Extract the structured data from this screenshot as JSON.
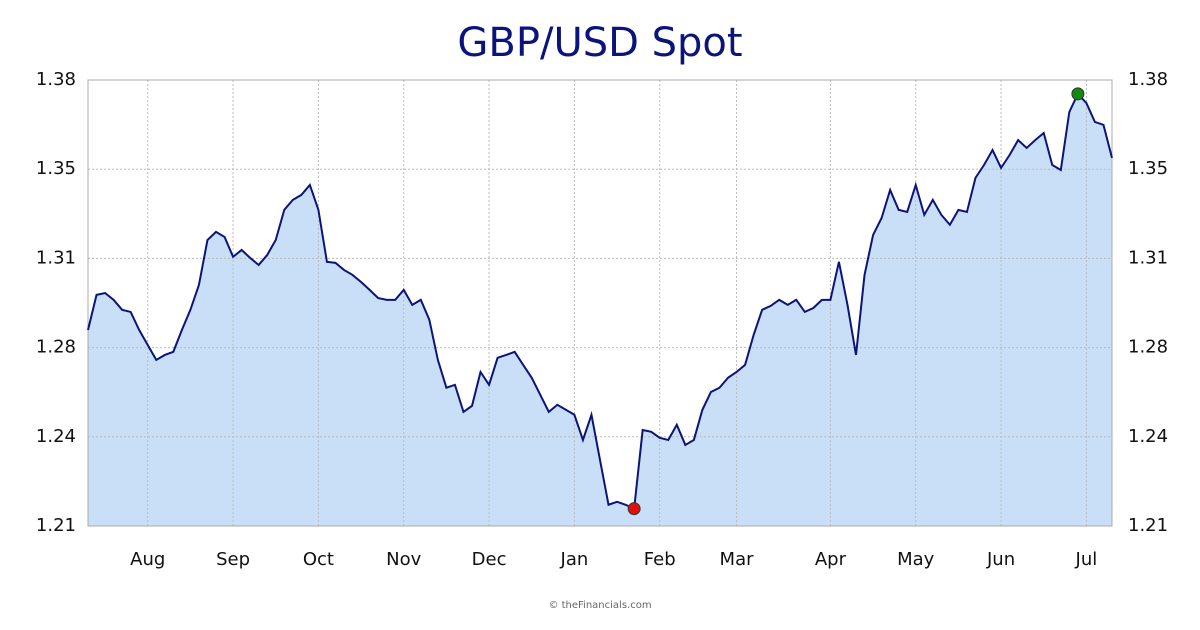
{
  "chart_data": {
    "type": "area",
    "title": "GBP/USD Spot",
    "source": "© theFinancials.com",
    "categories": [
      null,
      null,
      null,
      null,
      null,
      null,
      null,
      "Aug",
      null,
      null,
      null,
      null,
      null,
      null,
      null,
      null,
      null,
      "Sep",
      null,
      null,
      null,
      null,
      null,
      null,
      null,
      null,
      null,
      "Oct",
      null,
      null,
      null,
      null,
      null,
      null,
      null,
      null,
      null,
      "Nov",
      null,
      null,
      null,
      null,
      null,
      null,
      null,
      null,
      null,
      "Dec",
      null,
      null,
      null,
      null,
      null,
      null,
      null,
      null,
      null,
      "Jan",
      null,
      null,
      null,
      null,
      null,
      null,
      null,
      null,
      null,
      "Feb",
      null,
      null,
      null,
      null,
      null,
      null,
      null,
      null,
      "Mar",
      null,
      null,
      null,
      null,
      null,
      null,
      null,
      null,
      null,
      null,
      "Apr",
      null,
      null,
      null,
      null,
      null,
      null,
      null,
      null,
      null,
      "May",
      null,
      null,
      null,
      null,
      null,
      null,
      null,
      null,
      null,
      "Jun",
      null,
      null,
      null,
      null,
      null,
      null,
      null,
      null,
      null,
      "Jul",
      null,
      null,
      null
    ],
    "values": [
      1.2847,
      1.2981,
      1.2988,
      1.2962,
      1.2924,
      1.2916,
      1.2847,
      1.279,
      1.2733,
      1.2752,
      1.2764,
      1.2847,
      1.2924,
      1.3019,
      1.319,
      1.3221,
      1.3202,
      1.3126,
      1.3152,
      1.3122,
      1.3095,
      1.3133,
      1.319,
      1.3305,
      1.3343,
      1.3362,
      1.34,
      1.3305,
      1.3107,
      1.3103,
      1.3076,
      1.3057,
      1.303,
      1.3,
      1.2969,
      1.2962,
      1.2962,
      1.3,
      1.2943,
      1.2962,
      1.2886,
      1.2733,
      1.2627,
      1.2638,
      1.2535,
      1.2558,
      1.2687,
      1.2638,
      1.2741,
      1.2752,
      1.2764,
      1.2714,
      1.2665,
      1.26,
      1.2535,
      1.2562,
      1.2543,
      1.2524,
      1.2428,
      1.2524,
      1.2352,
      1.2181,
      1.2192,
      1.2181,
      1.2166,
      1.2466,
      1.2459,
      1.2436,
      1.2428,
      1.2486,
      1.2409,
      1.2428,
      1.2543,
      1.2611,
      1.2627,
      1.2665,
      1.2687,
      1.2714,
      1.2828,
      1.2924,
      1.2939,
      1.2962,
      1.2943,
      1.2962,
      1.2916,
      1.2931,
      1.2962,
      1.2962,
      1.3107,
      1.2943,
      1.2752,
      1.3057,
      1.3209,
      1.3274,
      1.3381,
      1.3305,
      1.3297,
      1.34,
      1.3286,
      1.3343,
      1.3286,
      1.3248,
      1.3305,
      1.3297,
      1.3427,
      1.3476,
      1.3533,
      1.3465,
      1.3514,
      1.3571,
      1.3541,
      1.3571,
      1.3598,
      1.3476,
      1.3457,
      1.3678,
      1.3747,
      1.3712,
      1.364,
      1.3629,
      1.3503
    ],
    "color": "#0a147a",
    "fill": "#c9dff7",
    "min_color": "#e01010",
    "max_color": "#108a10",
    "ylim": [
      1.21,
      1.38
    ],
    "yticks": [
      1.21,
      {
        "value": 1.244,
        "label": "1.24"
      },
      {
        "value": 1.278,
        "label": "1.28"
      },
      {
        "value": 1.312,
        "label": "1.31"
      },
      {
        "value": 1.346,
        "label": "1.35"
      },
      1.38
    ],
    "grid": true
  }
}
